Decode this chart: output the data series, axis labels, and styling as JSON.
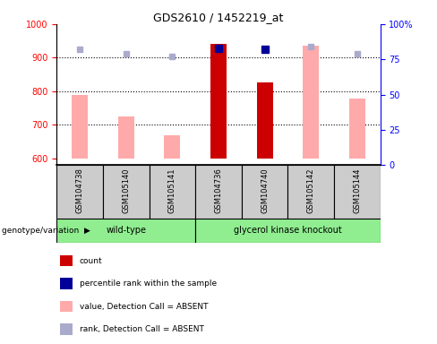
{
  "title": "GDS2610 / 1452219_at",
  "samples": [
    "GSM104738",
    "GSM105140",
    "GSM105141",
    "GSM104736",
    "GSM104740",
    "GSM105142",
    "GSM105144"
  ],
  "ylim_left": [
    580,
    1000
  ],
  "ylim_right": [
    0,
    100
  ],
  "yticks_left": [
    600,
    700,
    800,
    900,
    1000
  ],
  "yticks_right": [
    0,
    25,
    50,
    75,
    100
  ],
  "count_values": [
    null,
    null,
    null,
    940,
    825,
    null,
    null
  ],
  "value_absent": [
    790,
    725,
    668,
    null,
    null,
    935,
    778
  ],
  "rank_absent_pct": [
    82,
    79,
    77,
    null,
    null,
    84,
    79
  ],
  "percentile_present": [
    null,
    null,
    null,
    83,
    82,
    null,
    null
  ],
  "bar_bottom": 600,
  "bar_width": 0.35,
  "count_color": "#cc0000",
  "value_absent_color": "#ffaaaa",
  "rank_absent_color": "#aaaacc",
  "percentile_present_color": "#000099",
  "dotted_lines": [
    700,
    800,
    900
  ],
  "wt_indices": [
    0,
    1,
    2
  ],
  "gk_indices": [
    3,
    4,
    5,
    6
  ],
  "sample_box_color": "#cccccc",
  "wt_color": "#90ee90",
  "gk_color": "#7CFC00",
  "legend_items": [
    {
      "label": "count",
      "color": "#cc0000"
    },
    {
      "label": "percentile rank within the sample",
      "color": "#000099"
    },
    {
      "label": "value, Detection Call = ABSENT",
      "color": "#ffaaaa"
    },
    {
      "label": "rank, Detection Call = ABSENT",
      "color": "#aaaacc"
    }
  ],
  "genotype_label": "genotype/variation"
}
